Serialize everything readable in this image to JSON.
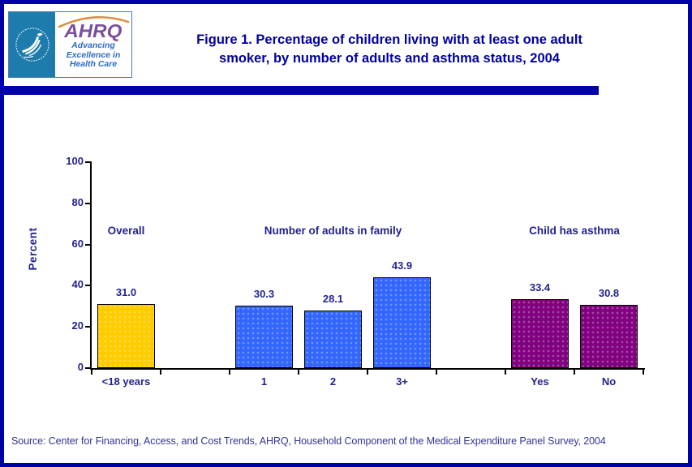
{
  "header": {
    "logo": {
      "hhs_seal": "hhs-eagle-seal",
      "ahrq_acronym": "AHRQ",
      "tagline": [
        "Advancing",
        "Excellence in",
        "Health Care"
      ]
    },
    "title_line1": "Figure 1. Percentage of children living with at least one adult",
    "title_line2": "smoker, by number of adults and asthma status, 2004",
    "title_color": "#0000A0",
    "divider_color": "#0000A8"
  },
  "chart_data": {
    "type": "bar",
    "title": "Figure 1. Percentage of children living with at least one adult smoker, by number of adults and asthma status, 2004",
    "ylabel": "Percent",
    "xlabel": "",
    "ylim": [
      0,
      100
    ],
    "yticks": [
      0,
      20,
      40,
      60,
      80,
      100
    ],
    "grid": false,
    "legend": "none",
    "bar_border_color": "#000000",
    "groups": [
      {
        "label": "Overall",
        "bars": [
          {
            "category": "<18 years",
            "value": 31.0,
            "color": "#FFCC00"
          }
        ]
      },
      {
        "label": "Number of adults in family",
        "bars": [
          {
            "category": "1",
            "value": 30.3,
            "color": "#3366FF"
          },
          {
            "category": "2",
            "value": 28.1,
            "color": "#3366FF"
          },
          {
            "category": "3+",
            "value": 43.9,
            "color": "#3366FF"
          }
        ]
      },
      {
        "label": "Child has asthma",
        "bars": [
          {
            "category": "Yes",
            "value": 33.4,
            "color": "#800080"
          },
          {
            "category": "No",
            "value": 30.8,
            "color": "#800080"
          }
        ]
      }
    ]
  },
  "footer": {
    "source": "Source: Center for Financing, Access, and Cost Trends, AHRQ, Household Component of the Medical Expenditure Panel Survey, 2004"
  },
  "colors": {
    "page_border": "#0000A8",
    "chart_text": "#23238F",
    "hhs_seal_background": "#1E7CAD",
    "ahrq_purple": "#7B4FA0",
    "ahrq_swoosh_orange": "#E08A3C",
    "tagline_blue": "#2E6BC6"
  }
}
